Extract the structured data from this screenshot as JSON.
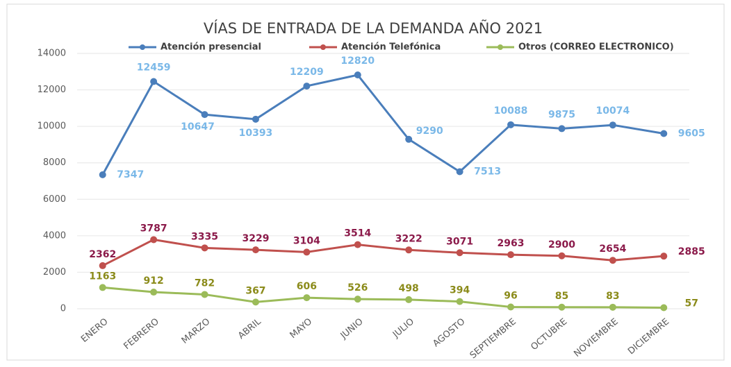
{
  "chart_data": {
    "type": "line",
    "title": "VÍAS DE ENTRADA DE LA DEMANDA AÑO 2021",
    "categories": [
      "ENERO",
      "FEBRERO",
      "MARZO",
      "ABRIL",
      "MAYO",
      "JUNIO",
      "JULIO",
      "AGOSTO",
      "SEPTIEMBRE",
      "OCTUBRE",
      "NOVIEMBRE",
      "DICIEMBRE"
    ],
    "series": [
      {
        "name": "Atención presencial",
        "color": "#4a7ebb",
        "label_color": "#7ab8e8",
        "values": [
          7347,
          12459,
          10647,
          10393,
          12209,
          12820,
          9290,
          7513,
          10088,
          9875,
          10074,
          9605
        ]
      },
      {
        "name": "Atención Telefónica",
        "color": "#c0504d",
        "label_color": "#8b1a4a",
        "values": [
          2362,
          3787,
          3335,
          3229,
          3104,
          3514,
          3222,
          3071,
          2963,
          2900,
          2654,
          2885
        ]
      },
      {
        "name": "Otros (CORREO ELECTRONICO)",
        "color": "#9bbb59",
        "label_color": "#8b8b1a",
        "values": [
          1163,
          912,
          782,
          367,
          606,
          526,
          498,
          394,
          96,
          85,
          83,
          57
        ]
      }
    ],
    "ylim": [
      0,
      14000
    ],
    "yticks": [
      0,
      2000,
      4000,
      6000,
      8000,
      10000,
      12000,
      14000
    ],
    "grid": true,
    "legend": "top"
  }
}
